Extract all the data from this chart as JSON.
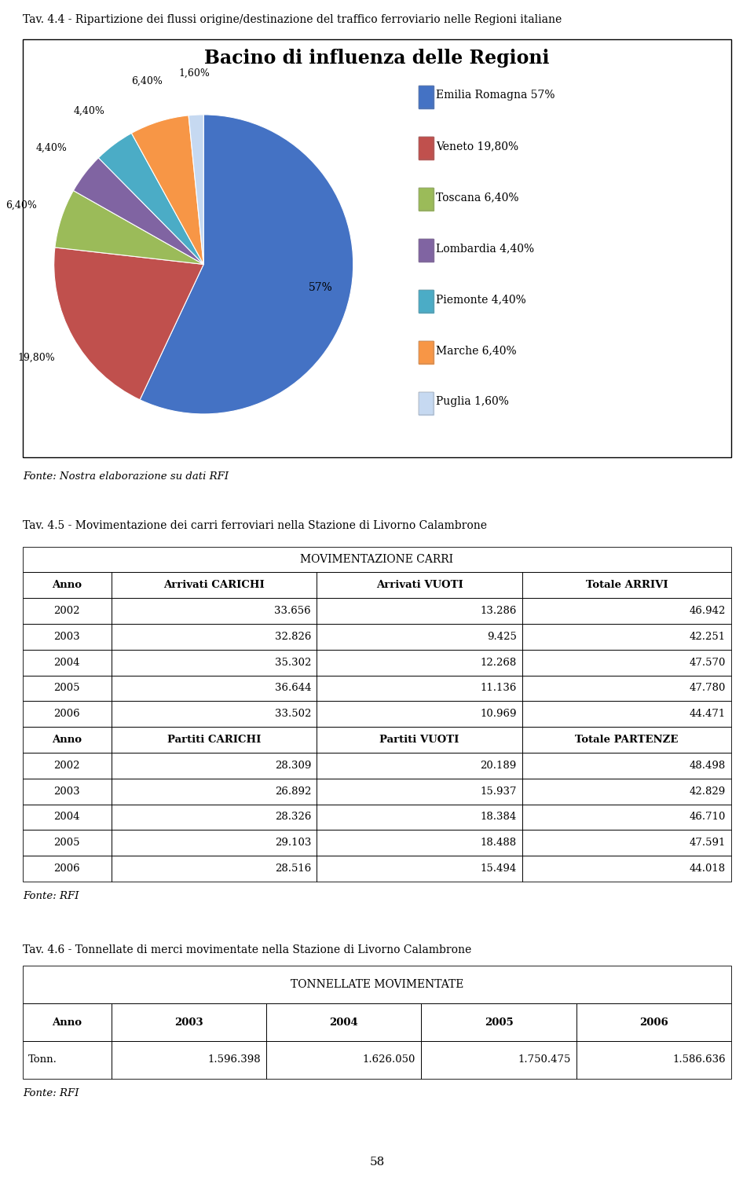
{
  "page_title": "Tav. 4.4 - Ripartizione dei flussi origine/destinazione del traffico ferroviario nelle Regioni italiane",
  "chart_title": "Bacino di influenza delle Regioni",
  "pie_labels": [
    "Emilia Romagna",
    "Veneto",
    "Toscana",
    "Lombardia",
    "Piemonte",
    "Marche",
    "Puglia"
  ],
  "pie_values": [
    57,
    19.8,
    6.4,
    4.4,
    4.4,
    6.4,
    1.6
  ],
  "pie_colors": [
    "#4472C4",
    "#C0504D",
    "#9BBB59",
    "#8064A2",
    "#4BACC6",
    "#F79646",
    "#C6D9F1"
  ],
  "pie_label_texts": [
    "57%",
    "19,80%",
    "6,40%",
    "4,40%",
    "4,40%",
    "6,40%",
    "1,60%"
  ],
  "legend_labels": [
    "Emilia Romagna 57%",
    "Veneto 19,80%",
    "Toscana 6,40%",
    "Lombardia 4,40%",
    "Piemonte 4,40%",
    "Marche 6,40%",
    "Puglia 1,60%"
  ],
  "fonte1": "Fonte: Nostra elaborazione su dati RFI",
  "table1_title": "Tav. 4.5 - Movimentazione dei carri ferroviari nella Stazione di Livorno Calambrone",
  "table1_header_merged": "MOVIMENTAZIONE CARRI",
  "table1_headers": [
    "Anno",
    "Arrivati CARICHI",
    "Arrivati VUOTI",
    "Totale ARRIVI"
  ],
  "table1_rows_arrivi": [
    [
      "2002",
      "33.656",
      "13.286",
      "46.942"
    ],
    [
      "2003",
      "32.826",
      "9.425",
      "42.251"
    ],
    [
      "2004",
      "35.302",
      "12.268",
      "47.570"
    ],
    [
      "2005",
      "36.644",
      "11.136",
      "47.780"
    ],
    [
      "2006",
      "33.502",
      "10.969",
      "44.471"
    ]
  ],
  "table1_headers2": [
    "Anno",
    "Partiti CARICHI",
    "Partiti VUOTI",
    "Totale PARTENZE"
  ],
  "table1_rows_partenze": [
    [
      "2002",
      "28.309",
      "20.189",
      "48.498"
    ],
    [
      "2003",
      "26.892",
      "15.937",
      "42.829"
    ],
    [
      "2004",
      "28.326",
      "18.384",
      "46.710"
    ],
    [
      "2005",
      "29.103",
      "18.488",
      "47.591"
    ],
    [
      "2006",
      "28.516",
      "15.494",
      "44.018"
    ]
  ],
  "fonte2": "Fonte: RFI",
  "table2_title": "Tav. 4.6 - Tonnellate di merci movimentate nella Stazione di Livorno Calambrone",
  "table2_header_merged": "TONNELLATE MOVIMENTATE",
  "table2_headers": [
    "Anno",
    "2003",
    "2004",
    "2005",
    "2006"
  ],
  "table2_rows": [
    [
      "Tonn.",
      "1.596.398",
      "1.626.050",
      "1.750.475",
      "1.586.636"
    ]
  ],
  "fonte3": "Fonte: RFI",
  "page_number": "58",
  "background_color": "#FFFFFF"
}
